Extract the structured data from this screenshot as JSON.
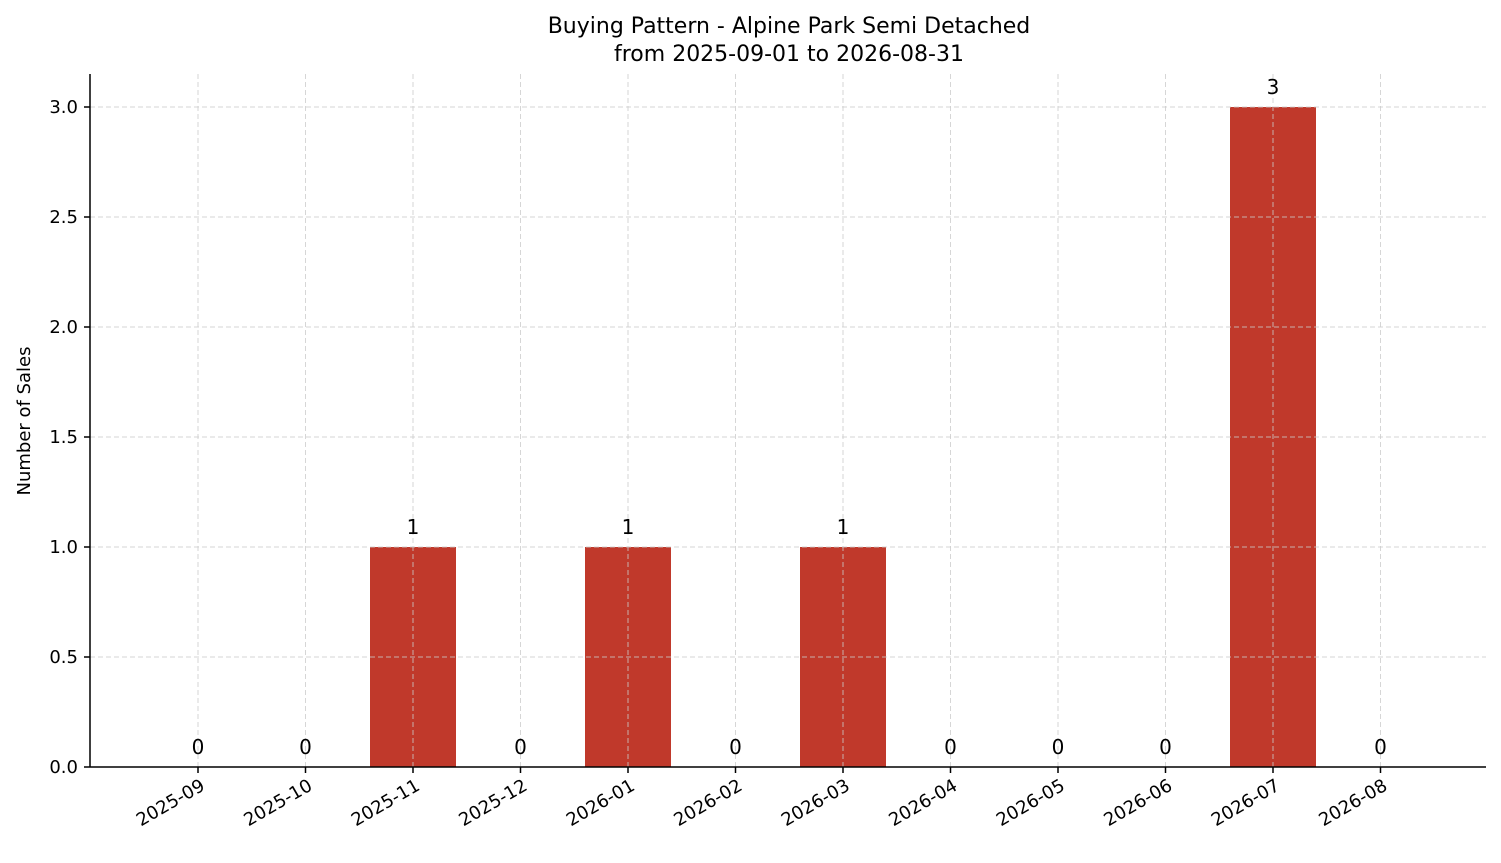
{
  "chart_data": {
    "type": "bar",
    "title": "Buying Pattern - Alpine Park Semi Detached",
    "subtitle": "from 2025-09-01 to 2026-08-31",
    "xlabel": "",
    "ylabel": "Number of Sales",
    "categories": [
      "2025-09",
      "2025-10",
      "2025-11",
      "2025-12",
      "2026-01",
      "2026-02",
      "2026-03",
      "2026-04",
      "2026-05",
      "2026-06",
      "2026-07",
      "2026-08"
    ],
    "values": [
      0,
      0,
      1,
      0,
      1,
      0,
      1,
      0,
      0,
      0,
      3,
      0
    ],
    "data_labels": [
      "0",
      "0",
      "1",
      "0",
      "1",
      "0",
      "1",
      "0",
      "0",
      "0",
      "3",
      "0"
    ],
    "yticks": [
      0.0,
      0.5,
      1.0,
      1.5,
      2.0,
      2.5,
      3.0
    ],
    "ytick_labels": [
      "0.0",
      "0.5",
      "1.0",
      "1.5",
      "2.0",
      "2.5",
      "3.0"
    ],
    "ylim": [
      0,
      3.15
    ],
    "grid": true,
    "bar_color": "#c0392b"
  }
}
